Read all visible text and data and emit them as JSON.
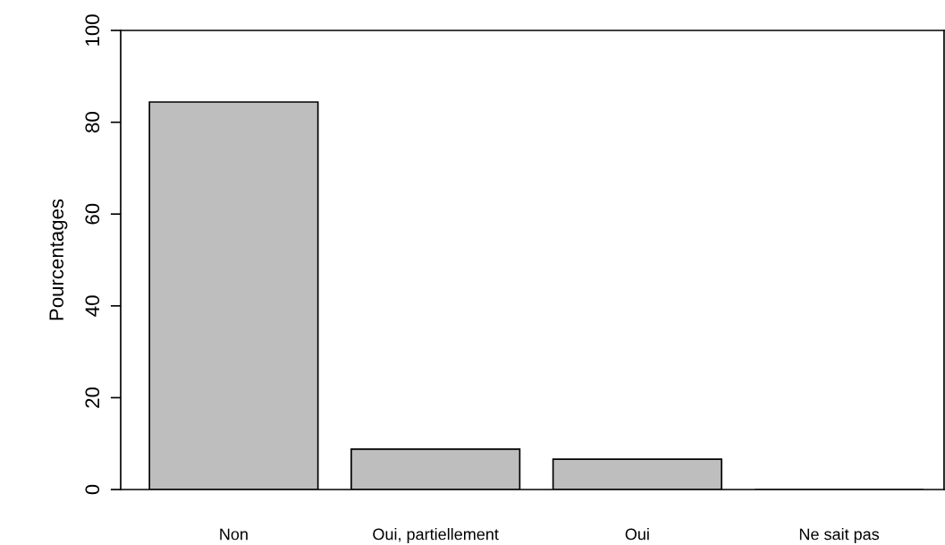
{
  "chart_data": {
    "type": "bar",
    "ylabel": "Pourcentages",
    "categories": [
      "Non",
      "Oui, partiellement",
      "Oui",
      "Ne sait pas"
    ],
    "values": [
      84.4,
      8.8,
      6.6,
      0
    ],
    "color": "#bebebe",
    "ylim": [
      0,
      100
    ],
    "yticks": [
      0,
      20,
      40,
      60,
      80,
      100
    ],
    "grid": false,
    "legend": false
  }
}
